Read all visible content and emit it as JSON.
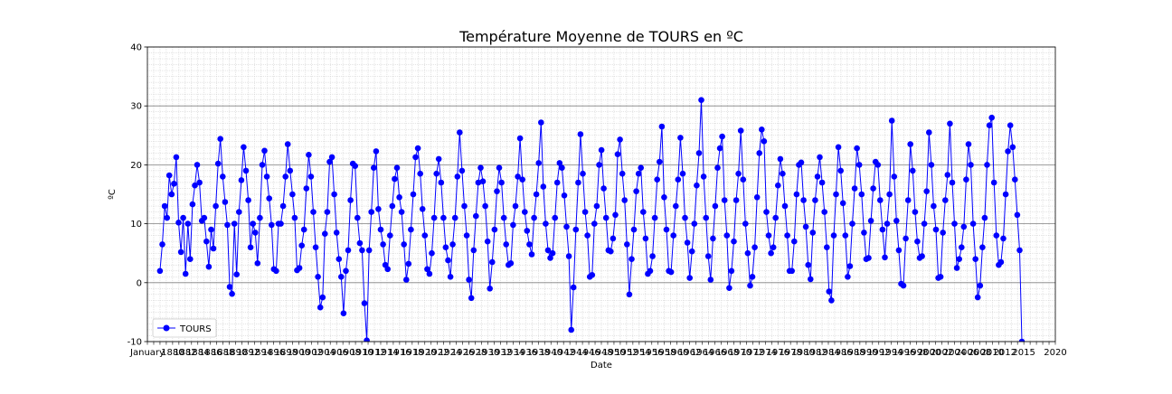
{
  "chart_data": {
    "type": "line",
    "title": "Température Moyenne de TOURS en ºC",
    "xlabel": "Date",
    "ylabel": "ºC",
    "ylim": [
      -10,
      40
    ],
    "yticks": [
      -10,
      0,
      10,
      20,
      30,
      40
    ],
    "xlim": [
      1876,
      2020
    ],
    "x_start_label": "January",
    "x_end_labels": [
      "2015",
      "2020"
    ],
    "grid": "major and minor",
    "legend": "lower-left",
    "series": [
      {
        "name": "TOURS",
        "color": "#0000ff",
        "marker": "circle",
        "values": [
          2.0,
          6.5,
          13.0,
          11.0,
          18.2,
          15.0,
          16.8,
          21.3,
          10.2,
          5.2,
          11.0,
          1.5,
          10.0,
          4.0,
          13.3,
          16.5,
          20.0,
          17.0,
          10.5,
          11.0,
          7.0,
          2.7,
          9.0,
          5.8,
          13.0,
          20.2,
          24.4,
          18.0,
          13.7,
          9.8,
          -0.7,
          -1.9,
          10.0,
          1.4,
          12.0,
          17.4,
          23.0,
          19.0,
          14.0,
          6.0,
          10.0,
          8.5,
          3.3,
          11.0,
          20.0,
          22.4,
          18.0,
          14.3,
          9.8,
          2.3,
          2.0,
          10.0,
          10.0,
          13.0,
          18.0,
          23.5,
          19.0,
          15.0,
          11.0,
          2.1,
          2.5,
          6.3,
          9.0,
          16.0,
          21.7,
          18.0,
          12.0,
          6.0,
          1.0,
          -4.2,
          -2.5,
          8.3,
          12.0,
          20.5,
          21.3,
          15.0,
          8.5,
          4.0,
          1.0,
          -5.2,
          2.0,
          5.5,
          14.0,
          20.2,
          19.8,
          11.0,
          6.7,
          5.5,
          -3.5,
          -9.8,
          5.5,
          12.0,
          19.5,
          22.3,
          12.5,
          9.0,
          6.5,
          3.0,
          2.3,
          8.0,
          13.0,
          17.6,
          19.5,
          14.5,
          12.0,
          6.5,
          0.5,
          3.2,
          9.0,
          15.0,
          21.3,
          22.8,
          18.5,
          12.5,
          8.0,
          2.3,
          1.5,
          5.0,
          11.0,
          18.5,
          21.0,
          17.0,
          11.0,
          6.0,
          3.8,
          1.0,
          6.5,
          11.0,
          18.0,
          25.5,
          19.0,
          13.0,
          8.0,
          0.5,
          -2.6,
          5.5,
          11.3,
          17.0,
          19.5,
          17.2,
          13.0,
          7.0,
          -1.0,
          3.5,
          9.0,
          15.5,
          19.5,
          17.0,
          11.0,
          6.5,
          3.0,
          3.3,
          9.8,
          13.0,
          18.0,
          24.5,
          17.5,
          12.0,
          8.8,
          6.5,
          4.8,
          11.0,
          15.0,
          20.3,
          27.2,
          16.3,
          10.0,
          5.5,
          4.2,
          5.0,
          11.0,
          17.0,
          20.3,
          19.5,
          14.8,
          9.5,
          4.5,
          -8.0,
          -0.8,
          9.0,
          17.0,
          25.2,
          18.5,
          12.0,
          8.0,
          1.0,
          1.3,
          10.0,
          13.0,
          20.0,
          22.5,
          16.0,
          11.0,
          5.5,
          5.3,
          7.5,
          11.5,
          21.8,
          24.3,
          18.5,
          14.0,
          6.5,
          -2.0,
          4.0,
          9.0,
          15.5,
          18.5,
          19.5,
          12.0,
          7.5,
          1.5,
          2.0,
          4.5,
          11.0,
          17.5,
          20.5,
          26.5,
          14.5,
          9.0,
          2.0,
          1.8,
          8.0,
          13.0,
          17.5,
          24.6,
          18.5,
          11.0,
          6.8,
          0.8,
          5.3,
          10.0,
          16.5,
          22.0,
          31.0,
          18.0,
          11.0,
          4.5,
          0.5,
          7.5,
          13.0,
          19.5,
          22.8,
          24.8,
          14.0,
          8.0,
          -0.9,
          2.0,
          7.0,
          14.0,
          18.5,
          25.8,
          17.5,
          10.0,
          5.0,
          -0.5,
          1.0,
          6.0,
          14.5,
          22.0,
          26.0,
          24.0,
          12.0,
          8.0,
          5.0,
          6.0,
          11.0,
          16.5,
          21.0,
          18.5,
          13.0,
          8.0,
          2.0,
          2.0,
          7.0,
          15.0,
          20.0,
          20.4,
          14.0,
          9.5,
          3.0,
          0.6,
          8.5,
          14.0,
          18.0,
          21.3,
          17.0,
          12.0,
          6.0,
          -1.5,
          -3.0,
          8.0,
          15.0,
          23.0,
          19.0,
          13.5,
          8.0,
          1.0,
          2.8,
          10.0,
          16.0,
          22.8,
          20.0,
          15.0,
          8.5,
          4.0,
          4.2,
          10.5,
          16.0,
          20.5,
          20.0,
          14.0,
          9.0,
          4.3,
          10.0,
          15.0,
          27.5,
          18.0,
          10.5,
          5.5,
          -0.2,
          -0.5,
          7.5,
          14.0,
          23.5,
          19.0,
          12.0,
          7.0,
          4.2,
          4.5,
          10.0,
          15.5,
          25.5,
          20.0,
          13.0,
          9.0,
          0.8,
          1.0,
          8.5,
          14.0,
          18.3,
          27.0,
          17.0,
          10.0,
          2.5,
          4.0,
          6.0,
          9.5,
          17.5,
          23.5,
          20.0,
          10.0,
          4.0,
          -2.5,
          -0.5,
          6.0,
          11.0,
          20.0,
          26.7,
          28.0,
          17.0,
          8.0,
          3.0,
          3.5,
          7.5,
          15.0,
          22.3,
          26.7,
          23.0,
          17.5,
          11.5,
          5.5,
          -10.0
        ]
      }
    ]
  }
}
